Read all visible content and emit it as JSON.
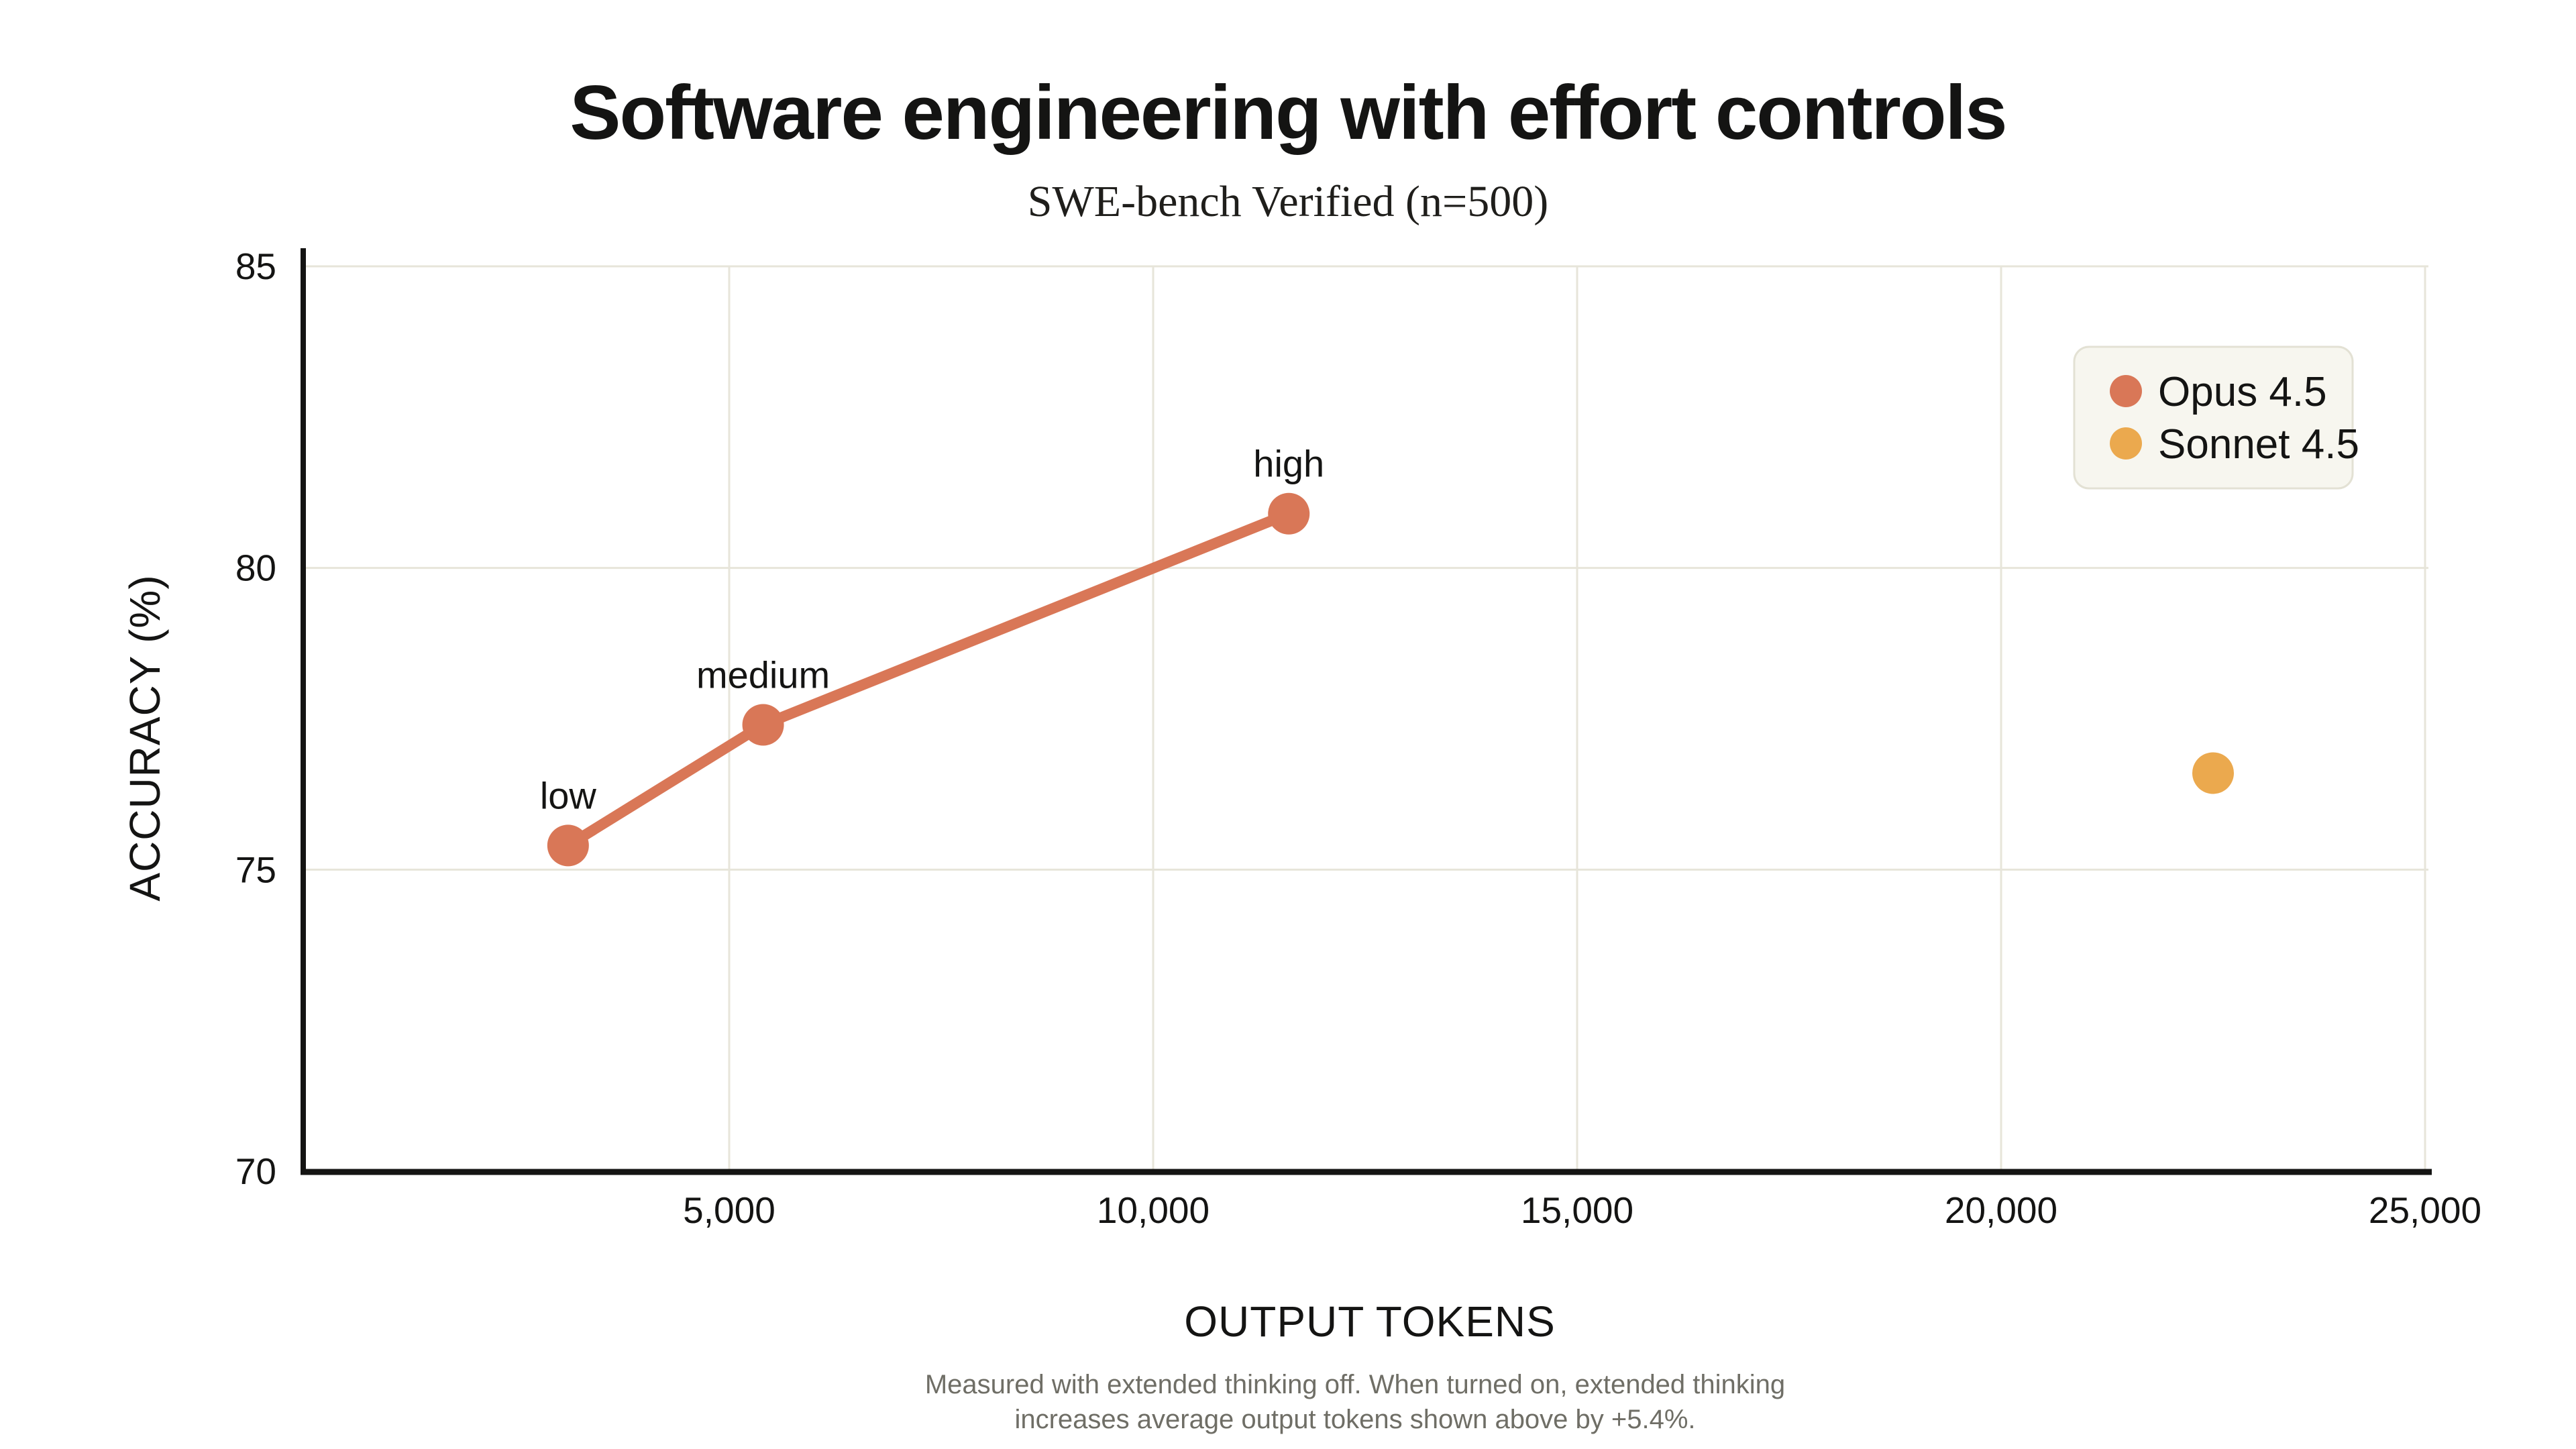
{
  "colors": {
    "background": "#ffffff",
    "text": "#141413",
    "point_label_text": "#3b3b37",
    "footnote_text": "#6f6e66",
    "grid": "#e7e5da",
    "axis": "#141413",
    "legend_bg": "#f7f6ef",
    "legend_border": "#e3e1d4",
    "opus": "#d97757",
    "sonnet": "#eba94e"
  },
  "chart_data": {
    "type": "scatter",
    "title": "Software engineering with effort controls",
    "subtitle": "SWE-bench Verified (n=500)",
    "xlabel": "OUTPUT TOKENS",
    "ylabel": "ACCURACY (%)",
    "xlim": [
      0,
      25000
    ],
    "ylim": [
      70,
      85
    ],
    "grid": true,
    "legend_position": "top-right",
    "x_ticks": [
      {
        "value": 5000,
        "label": "5,000"
      },
      {
        "value": 10000,
        "label": "10,000"
      },
      {
        "value": 15000,
        "label": "15,000"
      },
      {
        "value": 20000,
        "label": "20,000"
      },
      {
        "value": 25000,
        "label": "25,000"
      }
    ],
    "y_ticks": [
      {
        "value": 70,
        "label": "70"
      },
      {
        "value": 75,
        "label": "75"
      },
      {
        "value": 80,
        "label": "80"
      },
      {
        "value": 85,
        "label": "85"
      }
    ],
    "series": [
      {
        "name": "Opus 4.5",
        "color_key": "opus",
        "line": true,
        "points": [
          {
            "x": 3100,
            "y": 75.4,
            "label": "low"
          },
          {
            "x": 5400,
            "y": 77.4,
            "label": "medium"
          },
          {
            "x": 11600,
            "y": 80.9,
            "label": "high"
          }
        ]
      },
      {
        "name": "Sonnet 4.5",
        "color_key": "sonnet",
        "line": false,
        "points": [
          {
            "x": 22500,
            "y": 76.6,
            "label": ""
          }
        ]
      }
    ],
    "footnote_lines": [
      "Measured with extended thinking off. When turned on, extended thinking",
      "increases average output tokens shown above by +5.4%."
    ]
  }
}
